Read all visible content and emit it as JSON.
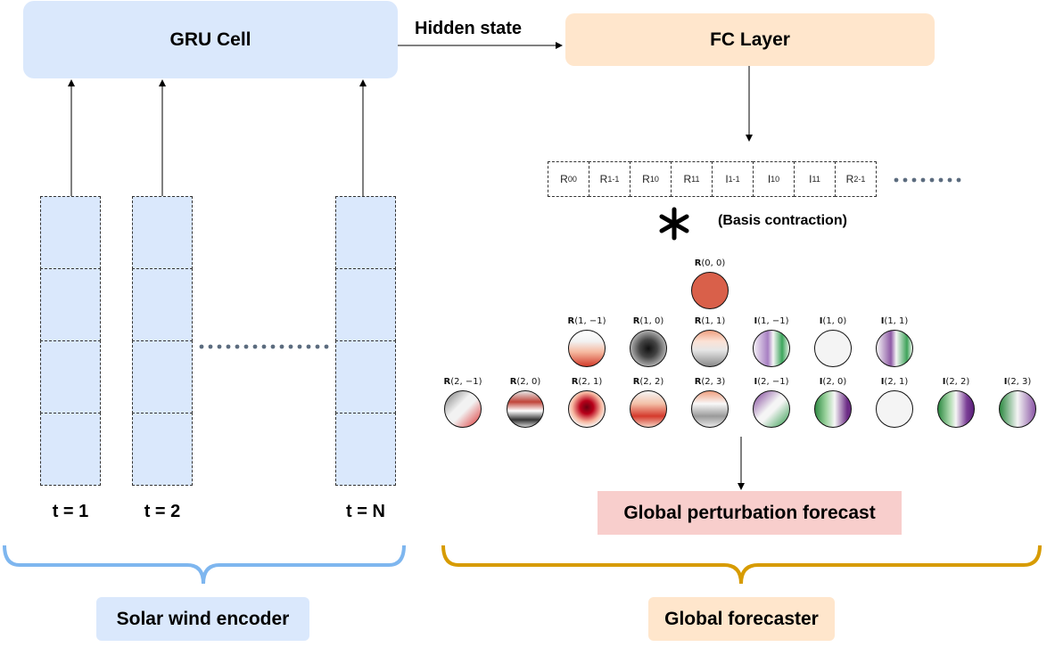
{
  "gru_cell": {
    "label": "GRU Cell"
  },
  "fc_layer": {
    "label": "FC Layer"
  },
  "hidden_state": {
    "label": "Hidden state"
  },
  "time_steps": [
    "t = 1",
    "t = 2",
    "t = N"
  ],
  "coefficients": [
    {
      "base": "R",
      "sub": "00"
    },
    {
      "base": "R",
      "sub": "1-1"
    },
    {
      "base": "R",
      "sub": "10"
    },
    {
      "base": "R",
      "sub": "11"
    },
    {
      "base": "I",
      "sub": "1-1"
    },
    {
      "base": "I",
      "sub": "10"
    },
    {
      "base": "I",
      "sub": "11"
    },
    {
      "base": "R",
      "sub": "2-1"
    }
  ],
  "basis_contraction": {
    "label": "(Basis contraction)"
  },
  "spheres": {
    "row0": [
      {
        "part": "R",
        "idx": "(0, 0)"
      }
    ],
    "row1": [
      {
        "part": "R",
        "idx": "(1, −1)"
      },
      {
        "part": "R",
        "idx": "(1, 0)"
      },
      {
        "part": "R",
        "idx": "(1, 1)"
      },
      {
        "part": "I",
        "idx": "(1, −1)"
      },
      {
        "part": "I",
        "idx": "(1, 0)"
      },
      {
        "part": "I",
        "idx": "(1, 1)"
      }
    ],
    "row2": [
      {
        "part": "R",
        "idx": "(2, −1)"
      },
      {
        "part": "R",
        "idx": "(2, 0)"
      },
      {
        "part": "R",
        "idx": "(2, 1)"
      },
      {
        "part": "R",
        "idx": "(2, 2)"
      },
      {
        "part": "R",
        "idx": "(2, 3)"
      },
      {
        "part": "I",
        "idx": "(2, −1)"
      },
      {
        "part": "I",
        "idx": "(2, 0)"
      },
      {
        "part": "I",
        "idx": "(2, 1)"
      },
      {
        "part": "I",
        "idx": "(2, 2)"
      },
      {
        "part": "I",
        "idx": "(2, 3)"
      }
    ]
  },
  "global_perturbation": {
    "label": "Global perturbation forecast"
  },
  "solar_wind_encoder": {
    "label": "Solar wind encoder"
  },
  "global_forecaster": {
    "label": "Global forecaster"
  },
  "colors": {
    "encoder_blue": "#dae8fc",
    "forecaster_orange": "#ffe6cc",
    "forecast_red": "#f8cecc",
    "encoder_brace": "#7eb6ef",
    "forecaster_brace": "#d79b00",
    "dots": "#5b6b7e"
  }
}
